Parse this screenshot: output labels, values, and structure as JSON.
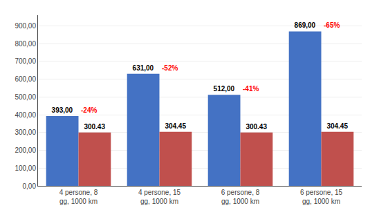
{
  "chart_data": {
    "type": "bar",
    "categories": [
      "4 persone, 8\ngg, 1000 km",
      "4 persone, 15\ngg, 1000 km",
      "6 persone, 8\ngg, 1000 km",
      "6 persone, 15\ngg, 1000 km"
    ],
    "series": [
      {
        "color": "#4472C4",
        "values": [
          393.0,
          631.0,
          512.0,
          869.0
        ],
        "value_labels": [
          "393,00",
          "631,00",
          "512,00",
          "869,00"
        ]
      },
      {
        "color": "#C0504D",
        "values": [
          300.43,
          304.45,
          300.43,
          304.45
        ],
        "value_labels": [
          "300.43",
          "304.45",
          "300.43",
          "304.45"
        ]
      }
    ],
    "data_labels": true,
    "annotations": [
      {
        "text": "-24%",
        "x": "4 persone, 8\ngg, 1000 km",
        "y": 393.0,
        "color": "red"
      },
      {
        "text": "-52%",
        "x": "4 persone, 15\ngg, 1000 km",
        "y": 631.0,
        "color": "red"
      },
      {
        "text": "-41%",
        "x": "6 persone, 8\ngg, 1000 km",
        "y": 512.0,
        "color": "red"
      },
      {
        "text": "-65%",
        "x": "6 persone, 15\ngg, 1000 km",
        "y": 869.0,
        "color": "red"
      }
    ],
    "ylim": [
      0,
      960
    ],
    "yticks": [
      {
        "value": 0,
        "label": "0,00"
      },
      {
        "value": 100,
        "label": "100,00"
      },
      {
        "value": 200,
        "label": "200,00"
      },
      {
        "value": 300,
        "label": "300,00"
      },
      {
        "value": 400,
        "label": "400,00"
      },
      {
        "value": 500,
        "label": "500,00"
      },
      {
        "value": 600,
        "label": "600,00"
      },
      {
        "value": 700,
        "label": "700,00"
      },
      {
        "value": 800,
        "label": "800,00"
      },
      {
        "value": 900,
        "label": "900,00"
      }
    ],
    "grid": true
  }
}
